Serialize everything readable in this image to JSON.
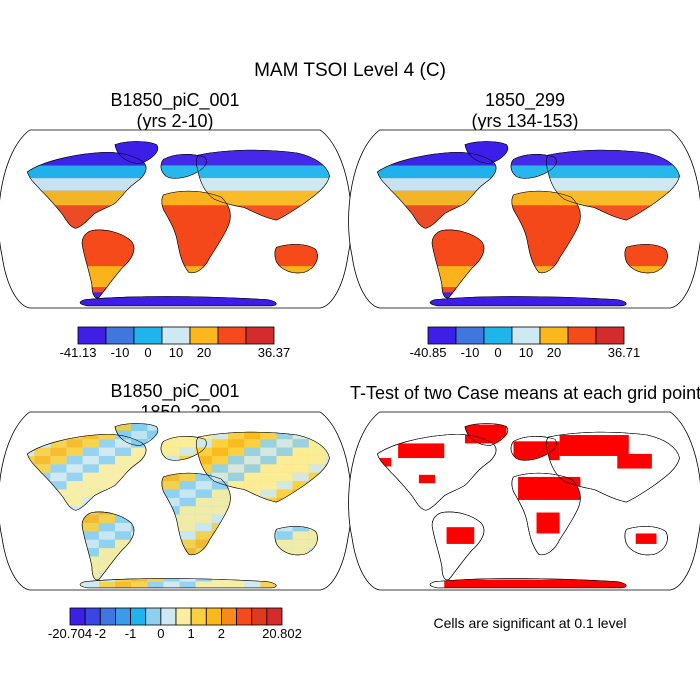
{
  "main_title": "MAM TSOI Level 4 (C)",
  "chart_data": [
    {
      "type": "heatmap",
      "title_line1": "B1850_piC_001",
      "title_line2": "(yrs 2-10)",
      "projection": "Robinson world map",
      "field": "soil temperature level 4 (C)",
      "colorbar": {
        "colors": [
          "#3d1fe8",
          "#3f76e0",
          "#1fb4ec",
          "#cfe9f2",
          "#fbb81c",
          "#f54a1a",
          "#d42c2c"
        ],
        "tick_labels": [
          "-41.13",
          "-10",
          "0",
          "10",
          "20",
          "36.37"
        ],
        "min": -41.13,
        "max": 36.37
      }
    },
    {
      "type": "heatmap",
      "title_line1": "1850_299",
      "title_line2": "(yrs 134-153)",
      "projection": "Robinson world map",
      "field": "soil temperature level 4 (C)",
      "colorbar": {
        "colors": [
          "#3d1fe8",
          "#3f76e0",
          "#1fb4ec",
          "#cfe9f2",
          "#fbb81c",
          "#f54a1a",
          "#d42c2c"
        ],
        "tick_labels": [
          "-40.85",
          "-10",
          "0",
          "10",
          "20",
          "36.71"
        ],
        "min": -40.85,
        "max": 36.71
      }
    },
    {
      "type": "heatmap",
      "title_line1": "B1850_piC_001",
      "title_line2": "- 1850_299",
      "projection": "Robinson world map",
      "field": "difference of case means",
      "colorbar": {
        "colors": [
          "#3d1fe8",
          "#3a45e4",
          "#3f76e0",
          "#3c9be8",
          "#1fb4ec",
          "#8fd0ef",
          "#cfe9f2",
          "#fbeea0",
          "#fbd040",
          "#fbb81c",
          "#f88a1c",
          "#f54a1a",
          "#e03a1e",
          "#d42c2c"
        ],
        "tick_labels": [
          "-20.704",
          "-2",
          "-1",
          "0",
          "1",
          "2",
          "20.802"
        ],
        "min": -20.704,
        "max": 20.802
      }
    },
    {
      "type": "heatmap",
      "title_line1": "T-Test of two Case means at each grid point",
      "projection": "Robinson world map",
      "field": "significance mask",
      "significant_color": "#ff0000",
      "note": "Cells are significant at 0.1 level"
    }
  ]
}
